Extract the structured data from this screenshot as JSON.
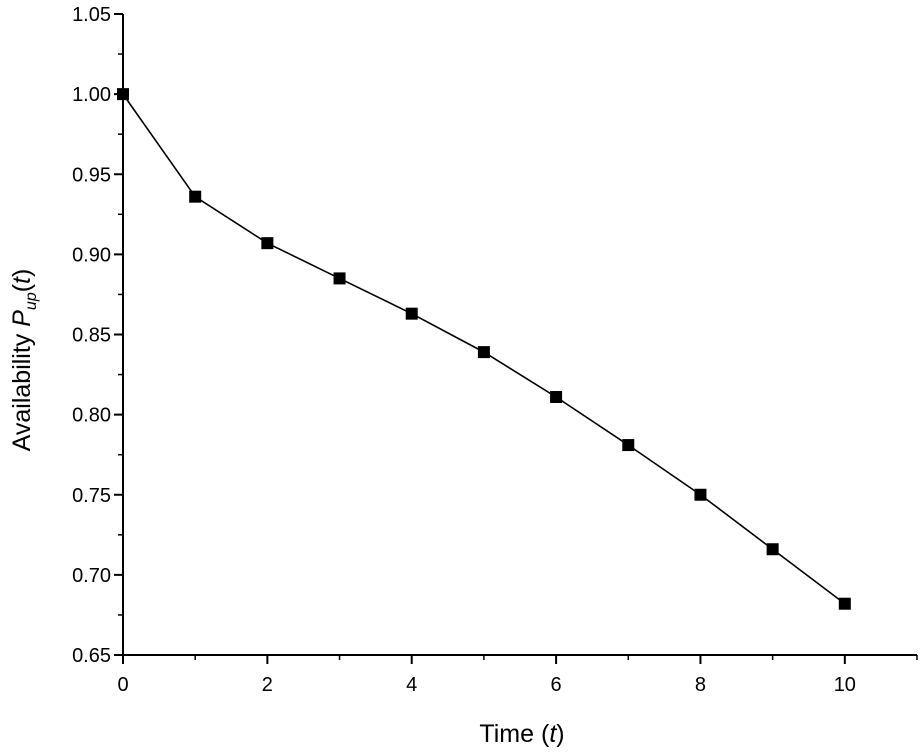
{
  "chart_data": {
    "type": "line",
    "x": [
      0,
      1,
      2,
      3,
      4,
      5,
      6,
      7,
      8,
      9,
      10
    ],
    "series": [
      {
        "values": [
          1.0,
          0.936,
          0.907,
          0.885,
          0.863,
          0.839,
          0.811,
          0.781,
          0.75,
          0.716,
          0.682
        ],
        "marker": "square",
        "color": "#000000"
      }
    ],
    "xlabel": {
      "text": "Time (",
      "var": "t",
      "close": ")"
    },
    "ylabel": {
      "text": "Availability ",
      "var": "P",
      "sub": "up",
      "open": "(",
      "arg": "t",
      "close": ")"
    },
    "xlim": [
      0,
      11
    ],
    "ylim": [
      0.65,
      1.05
    ],
    "xticks": [
      0,
      2,
      4,
      6,
      8,
      10
    ],
    "xtick_labels": [
      "0",
      "2",
      "4",
      "6",
      "8",
      "10"
    ],
    "yticks": [
      0.65,
      0.7,
      0.75,
      0.8,
      0.85,
      0.9,
      0.95,
      1.0,
      1.05
    ],
    "ytick_labels": [
      "0.65",
      "0.70",
      "0.75",
      "0.80",
      "0.85",
      "0.90",
      "0.95",
      "1.00",
      "1.05"
    ],
    "grid": false,
    "legend": "none"
  }
}
